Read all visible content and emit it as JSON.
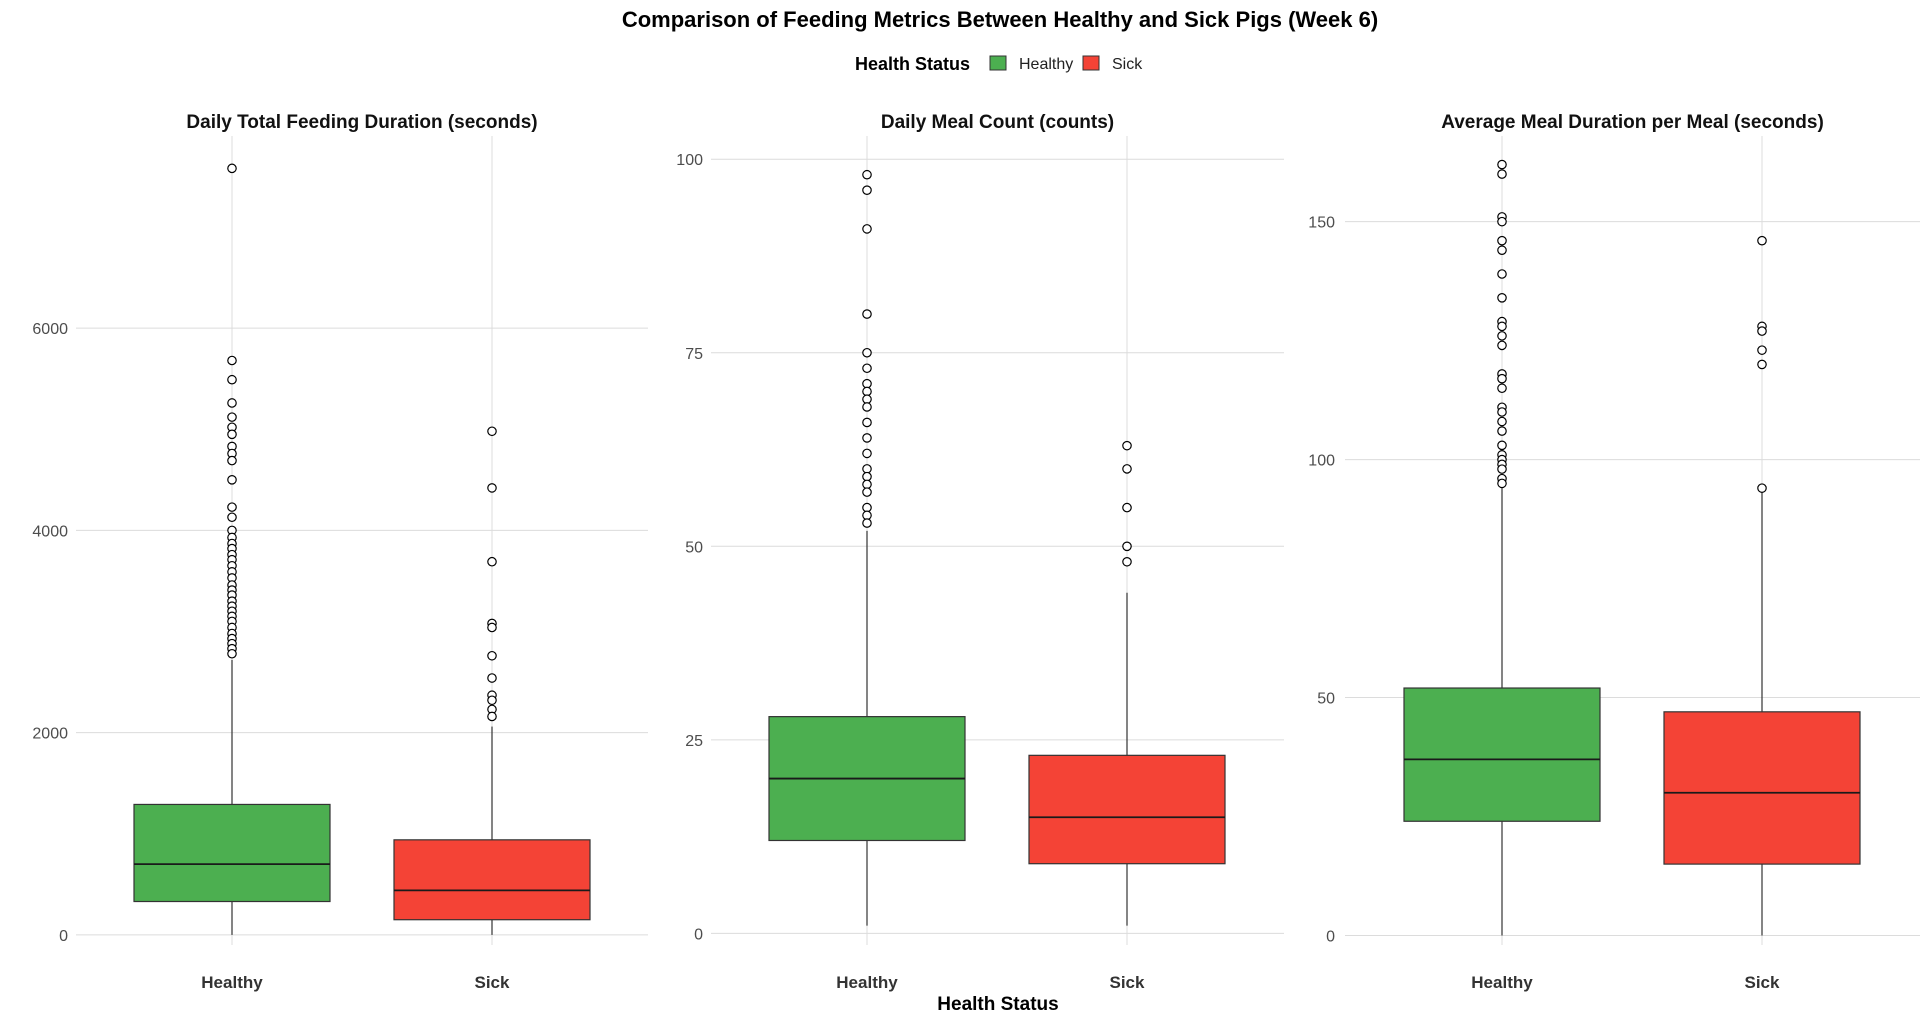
{
  "chart_data": {
    "title": "Comparison of Feeding Metrics Between Healthy and Sick Pigs (Week 6)",
    "xlabel": "Health Status",
    "legend": {
      "title": "Health Status",
      "position": "top",
      "entries": [
        {
          "label": "Healthy",
          "color": "#4CAF50"
        },
        {
          "label": "Sick",
          "color": "#F44336"
        }
      ]
    },
    "panels": [
      {
        "type": "box",
        "title": "Daily Total Feeding Duration (seconds)",
        "ylim": [
          -100,
          7900
        ],
        "yticks": [
          0,
          2000,
          4000,
          6000
        ],
        "grid": true,
        "categories": [
          "Healthy",
          "Sick"
        ],
        "boxes": [
          {
            "group": "Healthy",
            "whisker_low": 0,
            "q1": 330,
            "median": 700,
            "q3": 1290,
            "whisker_high": 2720,
            "outliers": [
              7580,
              5680,
              5490,
              5260,
              5120,
              5020,
              4950,
              4830,
              4760,
              4690,
              4500,
              4230,
              4130,
              4000,
              3930,
              3870,
              3820,
              3760,
              3710,
              3650,
              3590,
              3530,
              3460,
              3410,
              3360,
              3300,
              3250,
              3200,
              3150,
              3100,
              3040,
              2980,
              2930,
              2880,
              2830,
              2780
            ]
          },
          {
            "group": "Sick",
            "whisker_low": 0,
            "q1": 150,
            "median": 440,
            "q3": 940,
            "whisker_high": 2060,
            "outliers": [
              4980,
              4420,
              3690,
              3080,
              3040,
              2760,
              2540,
              2370,
              2320,
              2230,
              2160
            ]
          }
        ]
      },
      {
        "type": "box",
        "title": "Daily Meal Count (counts)",
        "ylim": [
          -1.5,
          103
        ],
        "yticks": [
          0,
          25,
          50,
          75,
          100
        ],
        "grid": true,
        "categories": [
          "Healthy",
          "Sick"
        ],
        "boxes": [
          {
            "group": "Healthy",
            "whisker_low": 1,
            "q1": 12,
            "median": 20,
            "q3": 28,
            "whisker_high": 52,
            "outliers": [
              98,
              96,
              91,
              80,
              75,
              73,
              71,
              70,
              69,
              68,
              66,
              64,
              62,
              60,
              59,
              58,
              57,
              55,
              54,
              53
            ]
          },
          {
            "group": "Sick",
            "whisker_low": 1,
            "q1": 9,
            "median": 15,
            "q3": 23,
            "whisker_high": 44,
            "outliers": [
              63,
              60,
              55,
              50,
              48
            ]
          }
        ]
      },
      {
        "type": "box",
        "title": "Average Meal Duration per Meal (seconds)",
        "ylim": [
          -2,
          168
        ],
        "yticks": [
          0,
          50,
          100,
          150
        ],
        "grid": true,
        "categories": [
          "Healthy",
          "Sick"
        ],
        "boxes": [
          {
            "group": "Healthy",
            "whisker_low": 0,
            "q1": 24,
            "median": 37,
            "q3": 52,
            "whisker_high": 94,
            "outliers": [
              162,
              160,
              151,
              150,
              146,
              144,
              139,
              134,
              129,
              128,
              126,
              124,
              118,
              117,
              115,
              111,
              110,
              108,
              106,
              103,
              101,
              100,
              99,
              98,
              96,
              95
            ]
          },
          {
            "group": "Sick",
            "whisker_low": 0,
            "q1": 15,
            "median": 30,
            "q3": 47,
            "whisker_high": 94,
            "outliers": [
              146,
              128,
              127,
              123,
              120,
              94
            ]
          }
        ]
      }
    ]
  }
}
